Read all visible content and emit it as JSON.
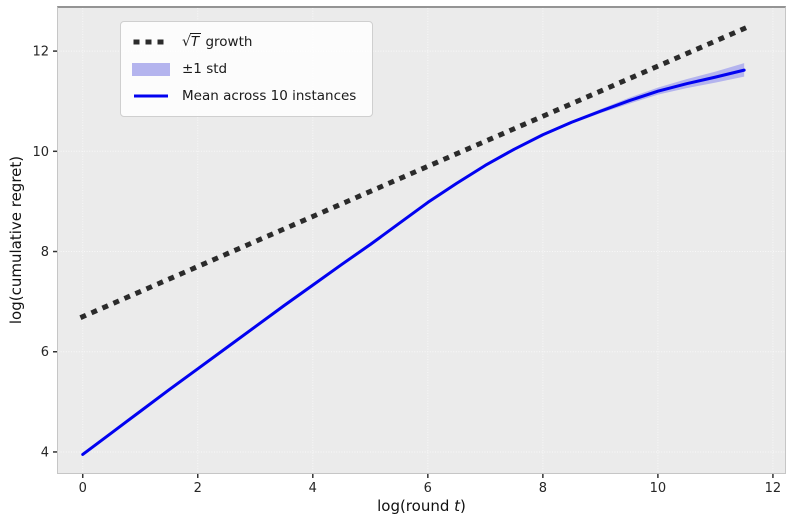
{
  "axes": {
    "xlabel_pre": "log(round ",
    "xlabel_var": "t",
    "xlabel_post": ")",
    "ylabel": "log(cumulative regret)"
  },
  "legend": {
    "items": [
      {
        "sqrt_symbol": "√",
        "sqrt_var": "T",
        "label_rest": " growth",
        "full": "√T growth"
      },
      {
        "label": "±1 std"
      },
      {
        "label": "Mean across 10 instances"
      }
    ]
  },
  "theme": {
    "plot_bg": "#ebebeb",
    "grid_color": "#f8f8f8",
    "sqrt_line_color": "#2b2b2b",
    "mean_line_color": "#0202f0",
    "band_color": "#b4b4ee",
    "figure_bg": "#ffffff"
  },
  "chart_data": {
    "type": "line",
    "title": "",
    "xlabel": "log(round t)",
    "ylabel": "log(cumulative regret)",
    "xlim": [
      -0.43,
      12.21
    ],
    "ylim": [
      3.58,
      12.86
    ],
    "x_ticks": [
      0,
      2,
      4,
      6,
      8,
      10,
      12
    ],
    "y_ticks": [
      4,
      6,
      8,
      10,
      12
    ],
    "grid": true,
    "legend_position": "upper left",
    "series": [
      {
        "name": "√T growth",
        "kind": "line",
        "style": "dotted",
        "color": "#2b2b2b",
        "width": 5,
        "dash": "1 11",
        "data_name": "sqrt-growth-line",
        "x": [
          0,
          11.5
        ],
        "y": [
          6.7,
          12.45
        ],
        "note": "y = 6.7 + 0.5x"
      },
      {
        "name": "±1 std",
        "kind": "band",
        "color": "#b4b4ee",
        "data_name": "std-band",
        "x": [
          0,
          0.5,
          1,
          1.5,
          2,
          2.5,
          3,
          3.5,
          4,
          4.5,
          5,
          5.5,
          6,
          6.5,
          7,
          7.5,
          8,
          8.5,
          9,
          9.5,
          10,
          10.5,
          11,
          11.5
        ],
        "upper": [
          3.97,
          4.4,
          4.83,
          5.26,
          5.68,
          6.1,
          6.52,
          6.94,
          7.35,
          7.76,
          8.16,
          8.58,
          9.0,
          9.38,
          9.74,
          10.06,
          10.36,
          10.61,
          10.84,
          11.07,
          11.27,
          11.44,
          11.59,
          11.76
        ],
        "lower": [
          3.93,
          4.36,
          4.79,
          5.22,
          5.64,
          6.06,
          6.48,
          6.9,
          7.31,
          7.72,
          8.12,
          8.54,
          8.96,
          9.34,
          9.7,
          10.02,
          10.31,
          10.55,
          10.76,
          10.95,
          11.13,
          11.26,
          11.37,
          11.49
        ]
      },
      {
        "name": "Mean across 10 instances",
        "kind": "line",
        "style": "solid",
        "color": "#0202f0",
        "width": 3,
        "data_name": "mean-line",
        "x": [
          0,
          0.5,
          1,
          1.5,
          2,
          2.5,
          3,
          3.5,
          4,
          4.5,
          5,
          5.5,
          6,
          6.5,
          7,
          7.5,
          8,
          8.5,
          9,
          9.5,
          10,
          10.5,
          11,
          11.5
        ],
        "y": [
          3.95,
          4.38,
          4.81,
          5.24,
          5.66,
          6.08,
          6.5,
          6.92,
          7.33,
          7.74,
          8.14,
          8.56,
          8.98,
          9.36,
          9.72,
          10.04,
          10.33,
          10.58,
          10.8,
          11.01,
          11.2,
          11.35,
          11.48,
          11.62
        ]
      }
    ]
  }
}
